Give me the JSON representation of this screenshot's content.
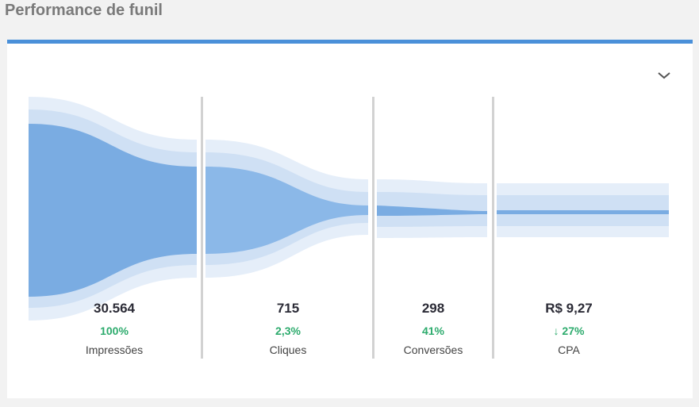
{
  "page": {
    "title": "Performance de funil"
  },
  "card": {
    "accent_color": "#4a90d9"
  },
  "icons": {
    "collapse": "chevron-down-icon"
  },
  "stages": [
    {
      "value": "30.564",
      "pct": "100%",
      "label": "Impressões"
    },
    {
      "value": "715",
      "pct": "2,3%",
      "label": "Cliques"
    },
    {
      "value": "298",
      "pct": "41%",
      "label": "Conversões"
    },
    {
      "value": "R$ 9,27",
      "pct": "↓ 27%",
      "label": "CPA"
    }
  ],
  "colors": {
    "primary_band": "#7aace2",
    "secondary_band": "#cfe0f4",
    "tertiary_band": "#e5eef9",
    "positive": "#2dab6d"
  }
}
